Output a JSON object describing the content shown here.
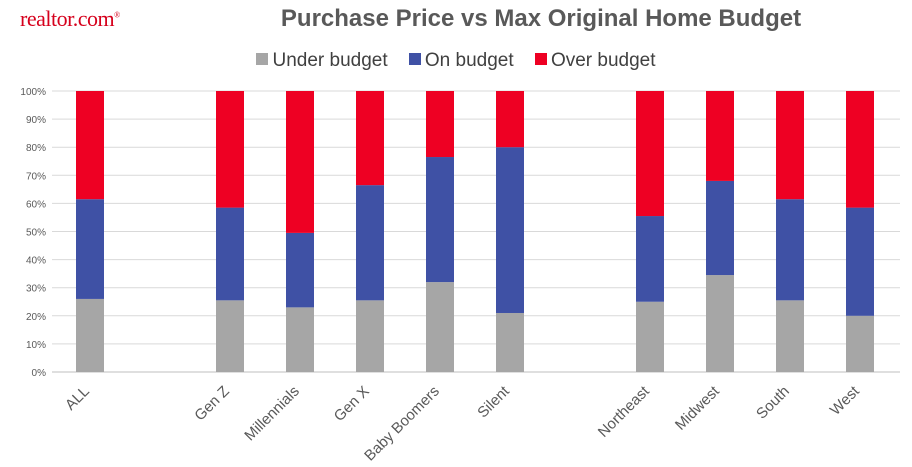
{
  "brand": {
    "logo_text": "realtor.com",
    "logo_mark": "®"
  },
  "colors": {
    "under": "#a6a6a6",
    "on": "#3f51a5",
    "over": "#ee0023",
    "grid": "#d9d9d9",
    "axis_text": "#595959"
  },
  "chart_data": {
    "type": "bar",
    "stacked": true,
    "title": "Purchase Price vs Max Original Home Budget",
    "categories": [
      "ALL",
      "Gen Z",
      "Millennials",
      "Gen X",
      "Baby Boomers",
      "Silent",
      "Northeast",
      "Midwest",
      "South",
      "West"
    ],
    "series": [
      {
        "name": "Under budget",
        "values": [
          26,
          25.5,
          23,
          25.5,
          32,
          21,
          25,
          34.5,
          25.5,
          20
        ]
      },
      {
        "name": "On budget",
        "values": [
          35.5,
          33,
          26.5,
          41,
          44.5,
          59,
          30.5,
          33.5,
          36,
          38.5
        ]
      },
      {
        "name": "Over budget",
        "values": [
          38.5,
          41.5,
          50.5,
          33.5,
          23.5,
          20,
          44.5,
          32,
          38.5,
          41.5
        ]
      }
    ],
    "ylim": [
      0,
      100
    ],
    "yticks": [
      "0%",
      "10%",
      "20%",
      "30%",
      "40%",
      "50%",
      "60%",
      "70%",
      "80%",
      "90%",
      "100%"
    ],
    "grid": true,
    "legend_position": "top"
  }
}
